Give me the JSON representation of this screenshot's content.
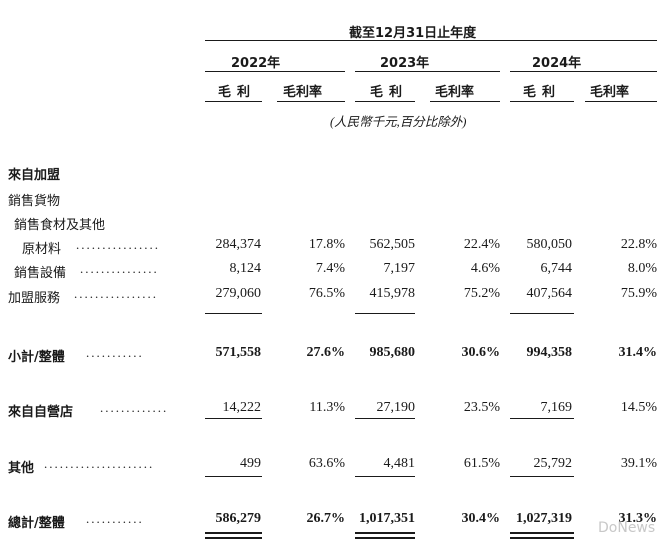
{
  "header": {
    "period": "截至12月31日止年度",
    "years": [
      "2022年",
      "2023年",
      "2024年"
    ],
    "sub_cols": [
      "毛利",
      "毛利率",
      "毛利",
      "毛利率",
      "毛利",
      "毛利率"
    ],
    "unit_note": "(人民幣千元,百分比除外)"
  },
  "rows": [
    {
      "label": "來自加盟",
      "values": []
    },
    {
      "label": "銷售貨物",
      "values": []
    },
    {
      "label": "銷售食材及其他",
      "values": []
    },
    {
      "label": "原材料",
      "values": [
        "284,374",
        "17.8%",
        "562,505",
        "22.4%",
        "580,050",
        "22.8%"
      ]
    },
    {
      "label": "銷售設備",
      "values": [
        "8,124",
        "7.4%",
        "7,197",
        "4.6%",
        "6,744",
        "8.0%"
      ]
    },
    {
      "label": "加盟服務",
      "values": [
        "279,060",
        "76.5%",
        "415,978",
        "75.2%",
        "407,564",
        "75.9%"
      ]
    },
    {
      "label": "小計/整體",
      "values": [
        "571,558",
        "27.6%",
        "985,680",
        "30.6%",
        "994,358",
        "31.4%"
      ]
    },
    {
      "label": "來自自營店",
      "values": [
        "14,222",
        "11.3%",
        "27,190",
        "23.5%",
        "7,169",
        "14.5%"
      ]
    },
    {
      "label": "其他",
      "values": [
        "499",
        "63.6%",
        "4,481",
        "61.5%",
        "25,792",
        "39.1%"
      ]
    },
    {
      "label": "總計/整體",
      "values": [
        "586,279",
        "26.7%",
        "1,017,351",
        "30.4%",
        "1,027,319",
        "31.3%"
      ]
    }
  ],
  "watermark": "DoNews"
}
